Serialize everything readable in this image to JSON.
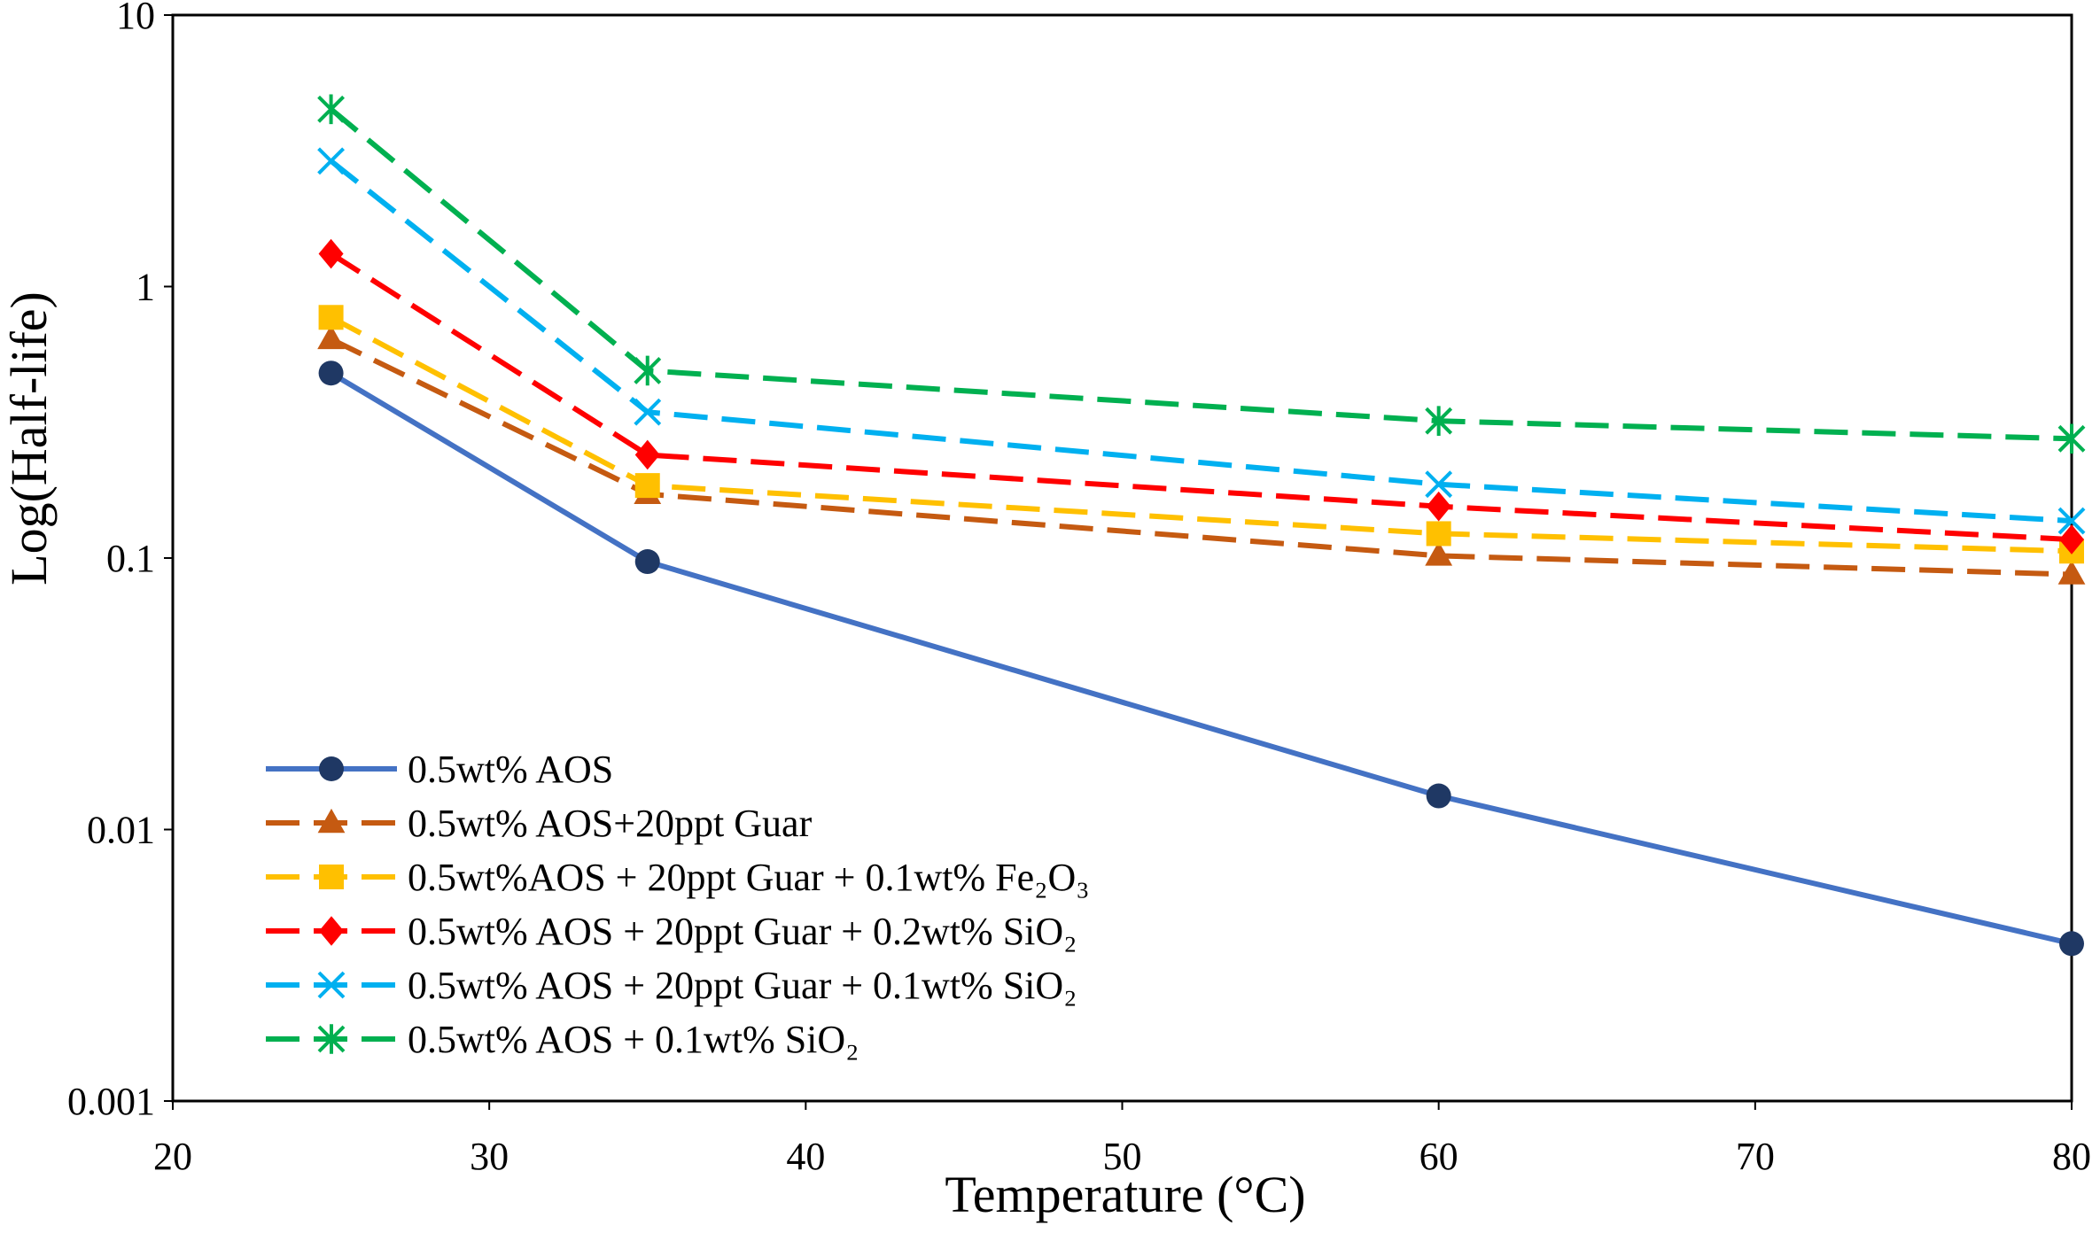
{
  "chart_data": {
    "type": "line",
    "title": "",
    "xlabel": "Temperature (°C)",
    "ylabel": "Log(Half-life)",
    "xlim": [
      20,
      80
    ],
    "ylim": [
      0.001,
      10
    ],
    "yscale": "log",
    "x_ticks": [
      20,
      30,
      40,
      50,
      60,
      70,
      80
    ],
    "x_tick_labels": [
      "20",
      "30",
      "40",
      "50",
      "60",
      "70",
      "80"
    ],
    "y_ticks": [
      0.001,
      0.01,
      0.1,
      1,
      10
    ],
    "y_tick_labels": [
      "0.001",
      "0.01",
      "0.1",
      "1",
      "10"
    ],
    "grid": false,
    "legend_position": "bottom-left",
    "series": [
      {
        "name": "0.5wt% AOS",
        "color": "#4472C4",
        "marker_color": "#1F3864",
        "marker": "circle",
        "dash": "solid",
        "x": [
          25,
          35,
          60,
          80
        ],
        "y": [
          0.48,
          0.097,
          0.0133,
          0.0038
        ]
      },
      {
        "name": "0.5wt% AOS+20ppt Guar",
        "color": "#C55A11",
        "marker_color": "#C55A11",
        "marker": "triangle",
        "dash": "dashed",
        "x": [
          25,
          35,
          60,
          80
        ],
        "y": [
          0.64,
          0.172,
          0.102,
          0.087
        ]
      },
      {
        "name": "0.5wt%AOS + 20ppt Guar + 0.1wt% Fe₂O₃",
        "color": "#FFC000",
        "marker_color": "#FFC000",
        "marker": "square",
        "dash": "dashed",
        "x": [
          25,
          35,
          60,
          80
        ],
        "y": [
          0.77,
          0.185,
          0.123,
          0.106
        ]
      },
      {
        "name": "0.5wt% AOS + 20ppt Guar + 0.2wt% SiO₂",
        "color": "#FF0000",
        "marker_color": "#FF0000",
        "marker": "diamond",
        "dash": "dashed",
        "x": [
          25,
          35,
          60,
          80
        ],
        "y": [
          1.32,
          0.24,
          0.155,
          0.117
        ]
      },
      {
        "name": "0.5wt% AOS + 20ppt Guar + 0.1wt% SiO₂",
        "color": "#00B0F0",
        "marker_color": "#00B0F0",
        "marker": "x",
        "dash": "dashed",
        "x": [
          25,
          35,
          60,
          80
        ],
        "y": [
          2.9,
          0.345,
          0.187,
          0.137
        ]
      },
      {
        "name": "0.5wt% AOS + 0.1wt% SiO₂",
        "color": "#00B050",
        "marker_color": "#00B050",
        "marker": "star",
        "dash": "dashed",
        "x": [
          25,
          35,
          60,
          80
        ],
        "y": [
          4.5,
          0.49,
          0.32,
          0.275
        ]
      }
    ]
  }
}
